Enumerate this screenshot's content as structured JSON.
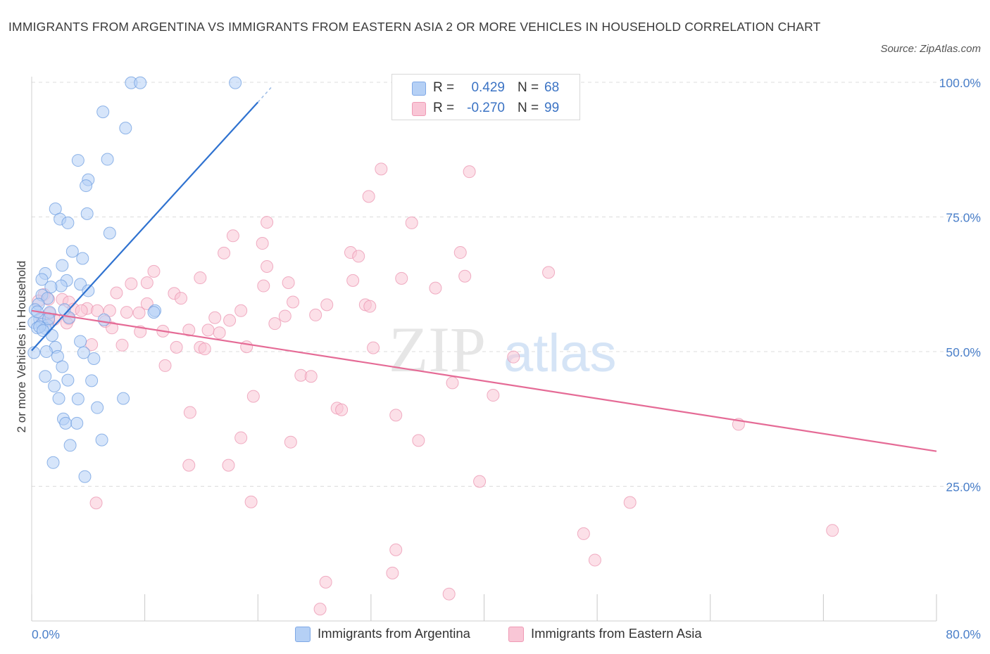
{
  "title": "IMMIGRANTS FROM ARGENTINA VS IMMIGRANTS FROM EASTERN ASIA 2 OR MORE VEHICLES IN HOUSEHOLD CORRELATION CHART",
  "source": "Source: ZipAtlas.com",
  "watermark": {
    "zip": "ZIP",
    "atlas": "atlas"
  },
  "stats": [
    {
      "r_label": "R =",
      "r_value": "0.429",
      "n_label": "N =",
      "n_value": "68",
      "color": "#b5d0f5",
      "border": "#7ea8e6"
    },
    {
      "r_label": "R =",
      "r_value": "-0.270",
      "n_label": "N =",
      "n_value": "99",
      "color": "#f9c6d6",
      "border": "#ef9ab5"
    }
  ],
  "legend": [
    {
      "label": "Immigrants from Argentina",
      "color": "#b5d0f5",
      "border": "#7ea8e6"
    },
    {
      "label": "Immigrants from Eastern Asia",
      "color": "#f9c6d6",
      "border": "#ef9ab5"
    }
  ],
  "chart_data": {
    "type": "scatter",
    "title": "IMMIGRANTS FROM ARGENTINA VS IMMIGRANTS FROM EASTERN ASIA 2 OR MORE VEHICLES IN HOUSEHOLD CORRELATION CHART",
    "xlabel": "",
    "ylabel": "2 or more Vehicles in Household",
    "xlim": [
      0,
      80
    ],
    "ylim": [
      0,
      100
    ],
    "x_tick_labels": [
      {
        "value": 0,
        "label": "0.0%"
      },
      {
        "value": 80,
        "label": "80.0%"
      }
    ],
    "y_tick_labels": [
      {
        "value": 100,
        "label": "100.0%"
      },
      {
        "value": 75,
        "label": "75.0%"
      },
      {
        "value": 50,
        "label": "50.0%"
      },
      {
        "value": 25,
        "label": "25.0%"
      }
    ],
    "grid": true,
    "legend_position": "bottom",
    "colors": {
      "argentina_fill": "#b5d0f5",
      "argentina_stroke": "#6e9ee0",
      "argentina_line": "#2f72d0",
      "easia_fill": "#f9c6d6",
      "easia_stroke": "#eb94b0",
      "easia_line": "#e56b96",
      "grid": "#dcdcdc",
      "axis_text": "#4a7fc9"
    },
    "series": [
      {
        "name": "Immigrants from Argentina",
        "r": 0.429,
        "n": 68,
        "trend": {
          "x": [
            0.0,
            20.0
          ],
          "y": [
            50.2,
            96.3
          ]
        },
        "trend_extension": {
          "x": [
            20.0,
            21.2
          ],
          "y": [
            96.3,
            99.1
          ]
        },
        "points": [
          [
            8.8,
            99.9
          ],
          [
            9.6,
            99.9
          ],
          [
            18.0,
            99.9
          ],
          [
            6.3,
            94.5
          ],
          [
            8.3,
            91.5
          ],
          [
            4.1,
            85.5
          ],
          [
            6.7,
            85.7
          ],
          [
            5.0,
            81.9
          ],
          [
            4.8,
            80.8
          ],
          [
            2.1,
            76.5
          ],
          [
            2.5,
            74.6
          ],
          [
            3.2,
            73.9
          ],
          [
            4.9,
            75.6
          ],
          [
            6.9,
            72.0
          ],
          [
            3.6,
            68.6
          ],
          [
            2.7,
            66.0
          ],
          [
            4.5,
            67.3
          ],
          [
            1.2,
            64.5
          ],
          [
            0.9,
            63.4
          ],
          [
            3.1,
            63.2
          ],
          [
            4.3,
            62.5
          ],
          [
            2.6,
            62.2
          ],
          [
            1.7,
            62.0
          ],
          [
            5.0,
            61.3
          ],
          [
            0.9,
            60.5
          ],
          [
            1.4,
            59.9
          ],
          [
            0.6,
            58.8
          ],
          [
            0.3,
            57.8
          ],
          [
            1.6,
            57.3
          ],
          [
            2.9,
            57.8
          ],
          [
            3.3,
            56.3
          ],
          [
            0.7,
            56.0
          ],
          [
            0.2,
            55.4
          ],
          [
            0.9,
            55.1
          ],
          [
            1.4,
            54.9
          ],
          [
            0.5,
            54.4
          ],
          [
            1.2,
            54.3
          ],
          [
            0.7,
            54.6
          ],
          [
            1.0,
            53.9
          ],
          [
            6.4,
            55.9
          ],
          [
            10.9,
            57.6
          ],
          [
            10.8,
            57.3
          ],
          [
            1.8,
            53.0
          ],
          [
            4.3,
            51.9
          ],
          [
            2.1,
            50.8
          ],
          [
            4.6,
            49.8
          ],
          [
            1.3,
            50.0
          ],
          [
            2.3,
            49.1
          ],
          [
            5.5,
            48.7
          ],
          [
            0.2,
            49.8
          ],
          [
            2.7,
            47.2
          ],
          [
            1.2,
            45.4
          ],
          [
            3.2,
            44.7
          ],
          [
            5.3,
            44.6
          ],
          [
            2.0,
            43.6
          ],
          [
            2.4,
            41.3
          ],
          [
            4.1,
            41.2
          ],
          [
            8.1,
            41.3
          ],
          [
            5.8,
            39.6
          ],
          [
            2.8,
            37.5
          ],
          [
            3.0,
            36.7
          ],
          [
            4.0,
            36.7
          ],
          [
            6.2,
            33.6
          ],
          [
            3.4,
            32.6
          ],
          [
            1.9,
            29.4
          ],
          [
            4.7,
            26.8
          ],
          [
            0.5,
            57.4
          ],
          [
            1.5,
            56.1
          ]
        ]
      },
      {
        "name": "Immigrants from Eastern Asia",
        "r": -0.27,
        "n": 99,
        "trend": {
          "x": [
            0.0,
            80.0
          ],
          "y": [
            57.6,
            31.5
          ]
        },
        "points": [
          [
            43.0,
            99.9
          ],
          [
            30.9,
            83.9
          ],
          [
            38.7,
            83.4
          ],
          [
            29.8,
            78.8
          ],
          [
            20.8,
            74.0
          ],
          [
            33.6,
            73.9
          ],
          [
            17.8,
            71.5
          ],
          [
            20.4,
            70.1
          ],
          [
            17.0,
            68.3
          ],
          [
            37.9,
            68.4
          ],
          [
            28.2,
            68.4
          ],
          [
            28.9,
            67.7
          ],
          [
            20.8,
            65.8
          ],
          [
            10.8,
            64.9
          ],
          [
            45.7,
            64.7
          ],
          [
            38.3,
            64.0
          ],
          [
            32.7,
            63.6
          ],
          [
            14.9,
            63.7
          ],
          [
            22.7,
            62.8
          ],
          [
            8.8,
            62.6
          ],
          [
            10.2,
            62.8
          ],
          [
            28.4,
            63.2
          ],
          [
            20.5,
            62.2
          ],
          [
            35.7,
            61.8
          ],
          [
            7.5,
            60.9
          ],
          [
            12.6,
            60.8
          ],
          [
            13.2,
            59.9
          ],
          [
            1.1,
            60.6
          ],
          [
            1.5,
            59.7
          ],
          [
            2.7,
            59.7
          ],
          [
            3.3,
            59.2
          ],
          [
            0.6,
            59.4
          ],
          [
            10.2,
            58.9
          ],
          [
            23.1,
            59.2
          ],
          [
            26.1,
            58.7
          ],
          [
            29.5,
            58.7
          ],
          [
            29.9,
            58.4
          ],
          [
            4.9,
            58.0
          ],
          [
            6.9,
            57.6
          ],
          [
            18.5,
            57.6
          ],
          [
            3.7,
            57.9
          ],
          [
            1.6,
            57.1
          ],
          [
            8.4,
            57.3
          ],
          [
            9.5,
            57.2
          ],
          [
            4.4,
            57.6
          ],
          [
            5.8,
            57.6
          ],
          [
            16.2,
            56.3
          ],
          [
            3.3,
            56.1
          ],
          [
            2.0,
            56.0
          ],
          [
            6.5,
            55.6
          ],
          [
            22.4,
            56.6
          ],
          [
            0.9,
            56.3
          ],
          [
            1.5,
            55.8
          ],
          [
            25.1,
            56.8
          ],
          [
            3.1,
            55.3
          ],
          [
            21.5,
            55.2
          ],
          [
            17.5,
            55.8
          ],
          [
            7.1,
            54.4
          ],
          [
            13.9,
            54.0
          ],
          [
            15.6,
            54.0
          ],
          [
            16.6,
            53.5
          ],
          [
            9.6,
            53.7
          ],
          [
            11.6,
            53.8
          ],
          [
            5.3,
            51.3
          ],
          [
            8.0,
            51.2
          ],
          [
            12.8,
            50.8
          ],
          [
            14.9,
            50.8
          ],
          [
            15.3,
            50.5
          ],
          [
            19.0,
            50.9
          ],
          [
            30.2,
            50.7
          ],
          [
            42.6,
            49.0
          ],
          [
            11.8,
            47.4
          ],
          [
            23.8,
            45.6
          ],
          [
            24.7,
            45.4
          ],
          [
            37.2,
            44.2
          ],
          [
            40.8,
            41.9
          ],
          [
            19.6,
            41.7
          ],
          [
            27.0,
            39.5
          ],
          [
            27.4,
            39.2
          ],
          [
            32.2,
            38.2
          ],
          [
            14.0,
            38.7
          ],
          [
            62.5,
            36.5
          ],
          [
            18.5,
            34.0
          ],
          [
            22.9,
            33.2
          ],
          [
            34.2,
            33.5
          ],
          [
            13.9,
            28.9
          ],
          [
            17.4,
            28.9
          ],
          [
            39.6,
            25.9
          ],
          [
            5.7,
            21.9
          ],
          [
            19.4,
            22.1
          ],
          [
            52.9,
            22.0
          ],
          [
            70.8,
            16.8
          ],
          [
            48.8,
            16.2
          ],
          [
            32.2,
            13.2
          ],
          [
            49.8,
            11.3
          ],
          [
            26.0,
            7.2
          ],
          [
            31.9,
            8.9
          ],
          [
            36.9,
            5.0
          ],
          [
            25.5,
            2.2
          ]
        ]
      }
    ]
  }
}
